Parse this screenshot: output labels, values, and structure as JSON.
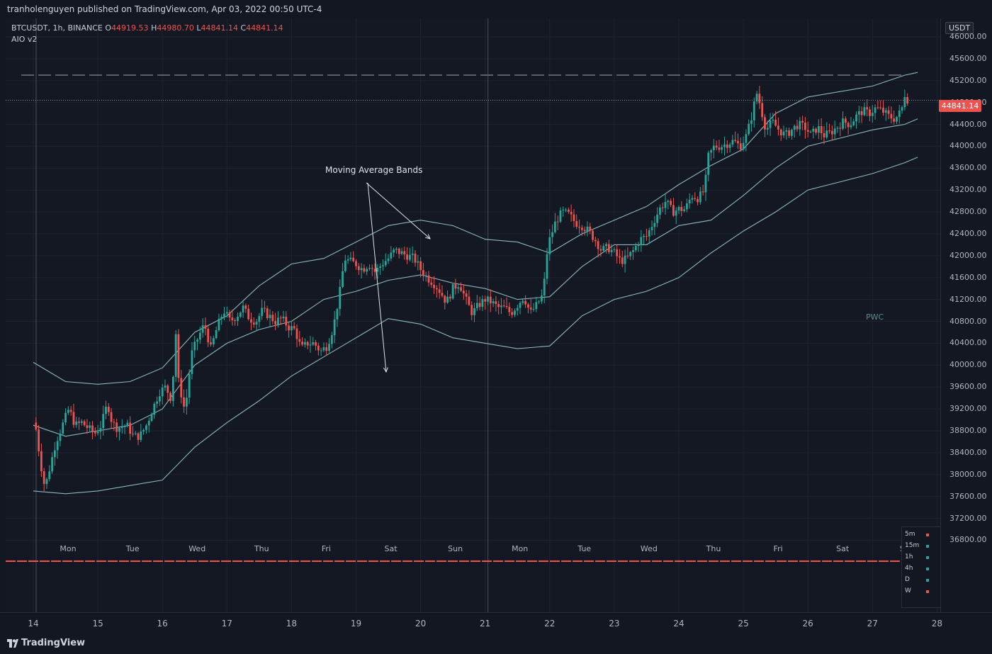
{
  "header": {
    "publisher_line": "tranholenguyen published on TradingView.com, Apr 03, 2022 00:50 UTC-4"
  },
  "legend": {
    "symbol_info": "BTCUSDT, 1h, BINANCE",
    "open_label": "O",
    "open": "44919.53",
    "high_label": "H",
    "high": "44980.70",
    "low_label": "L",
    "low": "44841.14",
    "close_label": "C",
    "close": "44841.14",
    "indicator": "AIO v2"
  },
  "price_axis": {
    "unit": "USDT",
    "current_price": "44841.14",
    "ticks": [
      "46000.00",
      "45600.00",
      "45200.00",
      "44800.00",
      "44400.00",
      "44000.00",
      "43600.00",
      "43200.00",
      "42800.00",
      "42400.00",
      "42000.00",
      "41600.00",
      "41200.00",
      "40800.00",
      "40400.00",
      "40000.00",
      "39600.00",
      "39200.00",
      "38800.00",
      "38400.00",
      "38000.00",
      "37600.00",
      "37200.00",
      "36800.00"
    ]
  },
  "annotations": {
    "bands_label": "Moving Average Bands",
    "pwc_label": "PWC"
  },
  "timeframe_panel": [
    {
      "label": "5m",
      "color": "#ef5350"
    },
    {
      "label": "15m",
      "color": "#26a69a"
    },
    {
      "label": "1h",
      "color": "#26a69a"
    },
    {
      "label": "4h",
      "color": "#26a69a"
    },
    {
      "label": "D",
      "color": "#26a69a"
    },
    {
      "label": "W",
      "color": "#ef5350"
    }
  ],
  "footer": {
    "brand": "TradingView"
  },
  "colors": {
    "up": "#26a69a",
    "down": "#ef5350",
    "band": "#9fd3d8",
    "background": "#131722",
    "grid": "#1e2230"
  },
  "chart_data": {
    "type": "candlestick",
    "symbol": "BTCUSDT",
    "interval": "1h",
    "exchange": "BINANCE",
    "ylim": [
      36700,
      46200
    ],
    "x_date_ticks": [
      "14",
      "15",
      "16",
      "17",
      "18",
      "19",
      "20",
      "21",
      "22",
      "23",
      "24",
      "25",
      "26",
      "27",
      "28"
    ],
    "x_day_labels": [
      "Mon",
      "Tue",
      "Wed",
      "Thu",
      "Fri",
      "Sat",
      "Sun",
      "Mon",
      "Tue",
      "Wed",
      "Thu",
      "Fri",
      "Sat",
      "Sun"
    ],
    "bands": {
      "upper": [
        [
          0,
          40050
        ],
        [
          0.5,
          39700
        ],
        [
          1,
          39650
        ],
        [
          1.5,
          39700
        ],
        [
          2,
          39950
        ],
        [
          2.5,
          40600
        ],
        [
          3,
          40900
        ],
        [
          3.5,
          41450
        ],
        [
          4,
          41850
        ],
        [
          4.5,
          41950
        ],
        [
          5,
          42250
        ],
        [
          5.5,
          42550
        ],
        [
          6,
          42650
        ],
        [
          6.5,
          42550
        ],
        [
          7,
          42300
        ],
        [
          7.5,
          42250
        ],
        [
          8,
          42050
        ],
        [
          8.5,
          42400
        ],
        [
          9,
          42650
        ],
        [
          9.5,
          42900
        ],
        [
          10,
          43300
        ],
        [
          10.5,
          43650
        ],
        [
          11,
          43950
        ],
        [
          11.5,
          44600
        ],
        [
          12,
          44900
        ],
        [
          12.5,
          45000
        ],
        [
          13,
          45100
        ],
        [
          13.5,
          45300
        ],
        [
          13.7,
          45350
        ]
      ],
      "middle": [
        [
          0,
          38900
        ],
        [
          0.5,
          38700
        ],
        [
          1,
          38800
        ],
        [
          1.5,
          38900
        ],
        [
          2,
          39200
        ],
        [
          2.5,
          40000
        ],
        [
          3,
          40400
        ],
        [
          3.5,
          40650
        ],
        [
          4,
          40800
        ],
        [
          4.5,
          41200
        ],
        [
          5,
          41350
        ],
        [
          5.5,
          41550
        ],
        [
          6,
          41650
        ],
        [
          6.5,
          41500
        ],
        [
          7,
          41400
        ],
        [
          7.5,
          41200
        ],
        [
          8,
          41250
        ],
        [
          8.5,
          41800
        ],
        [
          9,
          42200
        ],
        [
          9.5,
          42200
        ],
        [
          10,
          42550
        ],
        [
          10.5,
          42650
        ],
        [
          11,
          43100
        ],
        [
          11.5,
          43600
        ],
        [
          12,
          44000
        ],
        [
          12.5,
          44150
        ],
        [
          13,
          44300
        ],
        [
          13.5,
          44400
        ],
        [
          13.7,
          44500
        ]
      ],
      "lower": [
        [
          0,
          37700
        ],
        [
          0.5,
          37650
        ],
        [
          1,
          37700
        ],
        [
          1.5,
          37800
        ],
        [
          2,
          37900
        ],
        [
          2.5,
          38500
        ],
        [
          3,
          38950
        ],
        [
          3.5,
          39350
        ],
        [
          4,
          39800
        ],
        [
          4.5,
          40150
        ],
        [
          5,
          40500
        ],
        [
          5.5,
          40850
        ],
        [
          6,
          40750
        ],
        [
          6.5,
          40500
        ],
        [
          7,
          40400
        ],
        [
          7.5,
          40300
        ],
        [
          8,
          40350
        ],
        [
          8.5,
          40900
        ],
        [
          9,
          41200
        ],
        [
          9.5,
          41350
        ],
        [
          10,
          41600
        ],
        [
          10.5,
          42050
        ],
        [
          11,
          42450
        ],
        [
          11.5,
          42800
        ],
        [
          12,
          43200
        ],
        [
          12.5,
          43350
        ],
        [
          13,
          43500
        ],
        [
          13.5,
          43700
        ],
        [
          13.7,
          43800
        ]
      ]
    },
    "close_path": [
      [
        0,
        38950
      ],
      [
        0.05,
        38800
      ],
      [
        0.1,
        38300
      ],
      [
        0.18,
        37750
      ],
      [
        0.25,
        38100
      ],
      [
        0.35,
        38600
      ],
      [
        0.45,
        38900
      ],
      [
        0.55,
        39200
      ],
      [
        0.65,
        38900
      ],
      [
        0.75,
        38950
      ],
      [
        0.85,
        38850
      ],
      [
        0.95,
        38750
      ],
      [
        1.05,
        38900
      ],
      [
        1.15,
        39300
      ],
      [
        1.22,
        38950
      ],
      [
        1.3,
        38850
      ],
      [
        1.45,
        38900
      ],
      [
        1.55,
        38700
      ],
      [
        1.65,
        38700
      ],
      [
        1.75,
        38900
      ],
      [
        1.85,
        39200
      ],
      [
        1.95,
        39500
      ],
      [
        2.05,
        39600
      ],
      [
        2.15,
        39350
      ],
      [
        2.2,
        40750
      ],
      [
        2.25,
        39700
      ],
      [
        2.35,
        39150
      ],
      [
        2.45,
        40200
      ],
      [
        2.55,
        40500
      ],
      [
        2.65,
        40750
      ],
      [
        2.75,
        40300
      ],
      [
        2.85,
        40700
      ],
      [
        2.95,
        41000
      ],
      [
        3.05,
        40800
      ],
      [
        3.15,
        40900
      ],
      [
        3.25,
        41050
      ],
      [
        3.35,
        40850
      ],
      [
        3.45,
        40800
      ],
      [
        3.55,
        41000
      ],
      [
        3.65,
        40900
      ],
      [
        3.75,
        40800
      ],
      [
        3.85,
        40850
      ],
      [
        3.95,
        40700
      ],
      [
        4.05,
        40650
      ],
      [
        4.15,
        40300
      ],
      [
        4.25,
        40400
      ],
      [
        4.35,
        40400
      ],
      [
        4.45,
        40250
      ],
      [
        4.55,
        40350
      ],
      [
        4.65,
        40700
      ],
      [
        4.75,
        41350
      ],
      [
        4.82,
        41950
      ],
      [
        4.9,
        41900
      ],
      [
        5.0,
        41850
      ],
      [
        5.1,
        41750
      ],
      [
        5.2,
        41850
      ],
      [
        5.3,
        41700
      ],
      [
        5.4,
        41850
      ],
      [
        5.5,
        41950
      ],
      [
        5.6,
        42100
      ],
      [
        5.7,
        42050
      ],
      [
        5.8,
        42000
      ],
      [
        5.9,
        41950
      ],
      [
        6.0,
        41750
      ],
      [
        6.1,
        41600
      ],
      [
        6.2,
        41500
      ],
      [
        6.3,
        41350
      ],
      [
        6.4,
        41150
      ],
      [
        6.5,
        41400
      ],
      [
        6.6,
        41500
      ],
      [
        6.7,
        41200
      ],
      [
        6.8,
        40950
      ],
      [
        6.9,
        41100
      ],
      [
        7.0,
        41200
      ],
      [
        7.1,
        41150
      ],
      [
        7.2,
        41050
      ],
      [
        7.3,
        41050
      ],
      [
        7.4,
        40950
      ],
      [
        7.5,
        41100
      ],
      [
        7.6,
        41250
      ],
      [
        7.7,
        40950
      ],
      [
        7.8,
        41100
      ],
      [
        7.9,
        41300
      ],
      [
        7.95,
        42000
      ],
      [
        8.0,
        42300
      ],
      [
        8.1,
        42650
      ],
      [
        8.2,
        42800
      ],
      [
        8.3,
        42750
      ],
      [
        8.4,
        42600
      ],
      [
        8.5,
        42550
      ],
      [
        8.6,
        42450
      ],
      [
        8.7,
        42300
      ],
      [
        8.8,
        42100
      ],
      [
        8.9,
        42150
      ],
      [
        9.0,
        42050
      ],
      [
        9.1,
        41900
      ],
      [
        9.2,
        41950
      ],
      [
        9.3,
        42100
      ],
      [
        9.4,
        42300
      ],
      [
        9.5,
        42350
      ],
      [
        9.6,
        42600
      ],
      [
        9.7,
        42850
      ],
      [
        9.8,
        43000
      ],
      [
        9.9,
        42800
      ],
      [
        10.0,
        42850
      ],
      [
        10.1,
        42850
      ],
      [
        10.2,
        43100
      ],
      [
        10.3,
        43050
      ],
      [
        10.4,
        43200
      ],
      [
        10.45,
        43800
      ],
      [
        10.55,
        44000
      ],
      [
        10.65,
        44000
      ],
      [
        10.75,
        44050
      ],
      [
        10.85,
        44100
      ],
      [
        10.95,
        44000
      ],
      [
        11.05,
        44200
      ],
      [
        11.15,
        44650
      ],
      [
        11.2,
        45000
      ],
      [
        11.25,
        44800
      ],
      [
        11.35,
        44300
      ],
      [
        11.45,
        44450
      ],
      [
        11.55,
        44300
      ],
      [
        11.65,
        44200
      ],
      [
        11.75,
        44300
      ],
      [
        11.85,
        44400
      ],
      [
        11.95,
        44350
      ],
      [
        12.05,
        44200
      ],
      [
        12.15,
        44350
      ],
      [
        12.25,
        44200
      ],
      [
        12.35,
        44250
      ],
      [
        12.45,
        44350
      ],
      [
        12.55,
        44450
      ],
      [
        12.65,
        44400
      ],
      [
        12.75,
        44550
      ],
      [
        12.85,
        44650
      ],
      [
        12.95,
        44600
      ],
      [
        13.05,
        44700
      ],
      [
        13.15,
        44650
      ],
      [
        13.25,
        44550
      ],
      [
        13.35,
        44500
      ],
      [
        13.45,
        44650
      ],
      [
        13.5,
        44950
      ],
      [
        13.55,
        44841
      ]
    ]
  }
}
